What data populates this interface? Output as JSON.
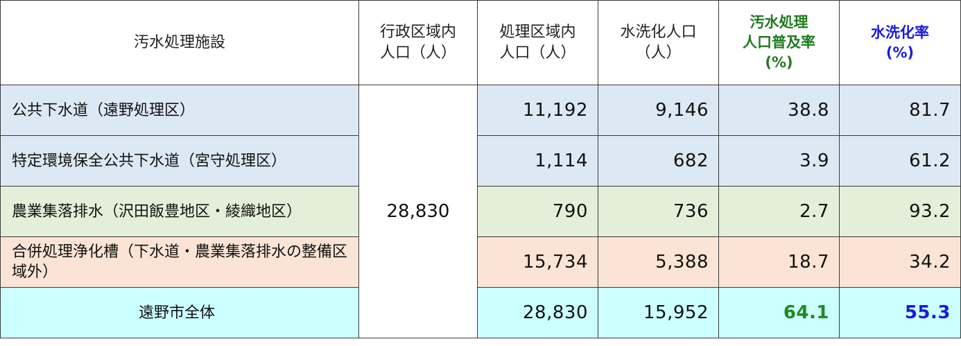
{
  "header": {
    "facility": "汚水処理施設",
    "admin_pop": [
      "行政区域内",
      "人口（人）"
    ],
    "treat_pop": [
      "処理区域内",
      "人口（人）"
    ],
    "flush_pop": [
      "水洗化人口",
      "（人）"
    ],
    "sewage_rate": [
      "汚水処理",
      "人口普及率",
      "(%)"
    ],
    "flush_rate": [
      "水洗化率",
      "(%)"
    ]
  },
  "admin_population": "28,830",
  "rows": [
    {
      "facility": "公共下水道（遠野処理区）",
      "treat_pop": "11,192",
      "flush_pop": "9,146",
      "sewage_rate": "38.8",
      "flush_rate": "81.7"
    },
    {
      "facility": "特定環境保全公共下水道（宮守処理区）",
      "treat_pop": "1,114",
      "flush_pop": "682",
      "sewage_rate": "3.9",
      "flush_rate": "61.2"
    },
    {
      "facility": "農業集落排水（沢田飯豊地区・綾織地区）",
      "treat_pop": "790",
      "flush_pop": "736",
      "sewage_rate": "2.7",
      "flush_rate": "93.2"
    },
    {
      "facility": "合併処理浄化槽（下水道・農業集落排水の整備区域外）",
      "treat_pop": "15,734",
      "flush_pop": "5,388",
      "sewage_rate": "18.7",
      "flush_rate": "34.2"
    }
  ],
  "total": {
    "facility": "遠野市全体",
    "treat_pop": "28,830",
    "flush_pop": "15,952",
    "sewage_rate": "64.1",
    "flush_rate": "55.3"
  },
  "colors": {
    "row_public_sewer": "#dde8f5",
    "row_agri": "#e4efd9",
    "row_septic": "#fbe4d6",
    "row_total": "#ccffff",
    "accent_green": "#1f8a1f",
    "accent_blue": "#1a1adf"
  }
}
